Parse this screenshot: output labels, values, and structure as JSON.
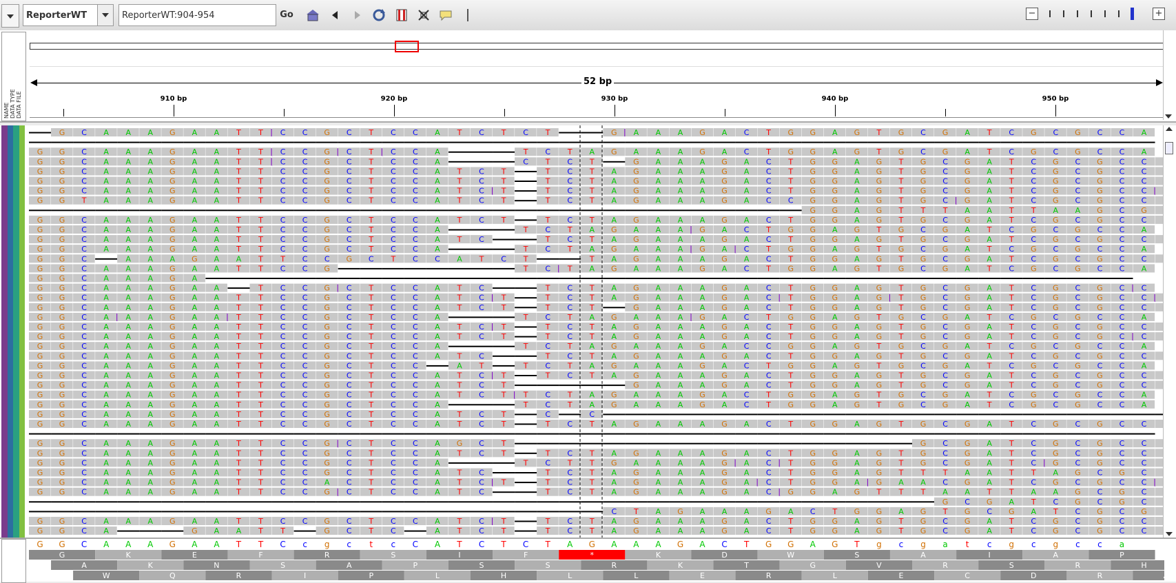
{
  "toolbar": {
    "genome": "ReporterWT",
    "locus": "ReporterWT:904-954",
    "go_label": "Go",
    "icons": [
      "home-icon",
      "back-icon",
      "forward-icon",
      "refresh-icon",
      "roi-icon",
      "resize-icon",
      "popup-info-icon"
    ]
  },
  "ruler": {
    "span_label": "52 bp",
    "ticks": [
      "910 bp",
      "920 bp",
      "930 bp",
      "940 bp",
      "950 bp"
    ],
    "header_labels": [
      "NAME",
      "DATA TYPE",
      "DATA FILE"
    ]
  },
  "colors": {
    "A": "#00c800",
    "C": "#0000ff",
    "G": "#d17105",
    "T": "#ff0000",
    "read_bg": "#c8c8c8",
    "insertion": "#8000c8",
    "stop_codon": "#ff0000"
  },
  "reference": {
    "start": 903,
    "sequence": "GGCAAAGAATTCcgctcCATCTCTAGAAAGACTGGAGTgcgatcgcgcca"
  },
  "reads": [
    {
      "text": "-GCAAAGAATTICCGCTCCATCTCT--GIAAAGACTGGAGTGCGATCGCGCCA"
    },
    {
      "text": "---------------------------------------------------"
    },
    {
      "text": "GGCAAAGAATTICCGICTICCA---TCTAGAAAGACTGGAGTGCGATCGCGCCA"
    },
    {
      "text": "GGCAAAGAATTICCGCTCCA---CTCT-GAAAGACTGGAGTGCGATCGCGCCA"
    },
    {
      "text": "GGCAAAGAATTCCGCTCCATCT-TCTAGAAAGACTGGAGTGCGATCGCGCCA"
    },
    {
      "text": "GGCAAAGAATTCCGCTCCATCT-TCTAGAAAGACTGGAGTGCGATCGCGCCA"
    },
    {
      "text": "GGCAAAGAATTCCGCTCCATCIT-TCTAGAAAGACTGGAGTGCGATCGCGCCIA"
    },
    {
      "text": "GGTAAAGAATTCCGCTCCATCT-TCTAGAAAGACCGGAGTGCIGATCGCGCCA"
    },
    {
      "text": "-----------------------------------GGAGTTTAATTAAGCGCA"
    },
    {
      "text": "GGCAAAGAATTCCGCTCCATCT-TCTAGAAAGACTGGAGTGCGATCGCGCCA"
    },
    {
      "text": "GGCAAAGAATTCCGCTCCA---TCTAGAAAIGACTGGAGTGCGATCGCGCCA"
    },
    {
      "text": "GGCAAAGAATTCCGCTCCATC--TCTAGAAAGACTGGAGTGCGATCGCGCCA"
    },
    {
      "text": "GGCAAAGAATTCCGCTCCA---TCTAGAAAIGAICTGGAGTGCGATCGCGCCA"
    },
    {
      "text": "GGC-AAAGAATTCCGCTCCATCT--TAGAAAGACTGGAGTGCGATCGCGCCA"
    },
    {
      "text": "GGCAAAGAATTCCG--------TCITAGAAAGACTGGAGTGCGATCGCGCCA"
    },
    {
      "text": "GGCAAAGA------------------------------------------"
    },
    {
      "text": "GGCAAAGAA-TCCGICTCCATC--TCTAGAAAGACTGGAGTGCGATCGCGCIC"
    },
    {
      "text": "GGCAAAGAATTCCGCTCCATCIT-TCTAGAAAGACITGGAGITGCGATCGCGCCIA"
    },
    {
      "text": "GGCAAAGAATTCCGCTCCATCT-TCT-GAAAGACTGGAGTGCGATCGCGCCA"
    },
    {
      "text": "GGCAIAAGAAITTCCGCTCCA---TCTAGAAAIGACTGGAGTGCGATCGCGCCA"
    },
    {
      "text": "GGCAAAGAATTCCGCTCCATCIT-TCTAGAAAGACTGGAGTGCGATCGCGCCA"
    },
    {
      "text": "GGCAAAGAATTCCGCTCCATCT-TCTAGAAAGACTGGAGTGCGATCGCGCICCA"
    },
    {
      "text": "GGCAAAGAATTCCGCTCCA---TCTAGAAAGACCGGAGTGCGATCGCGCCA"
    },
    {
      "text": "GGCAAAGAATTCCGCTCCATC--TCTAGAAAGACTGGAGTGCGATCGCGCCA"
    },
    {
      "text": "GGCAAAGAATTCCGCTCC-AT-TCTAGAAAGACTGGAGTGCGATCGCGCCA"
    },
    {
      "text": "GGCAAAGAATTCCGCTCCATCIT-TCTAGAAAGACTGGAGTGCGATCGCGCCA"
    },
    {
      "text": "GGCAAAGAATTCCGCTCCATCT-----GAAAGACTGGAGTGCGATCGCGCCA"
    },
    {
      "text": "GGCAAAGAATTCCGCTCCATCTITCTAGAAAGACTGGAGTGCGATCGCGCCA"
    },
    {
      "text": "GGCAAAGAATTCCGCTCCA---TCTAGAAAGACTGGAGTGCGATCGCGCCA"
    },
    {
      "text": "GGCAAAGAATTCCGCTCCATCT-C-C--------------------------"
    },
    {
      "text": "GGCAAAGAATTCCGCTCCATCT-TCTAGAAAGACTGGAGTGCGATCGCGCCA"
    },
    {
      "text": "---------------------------------------------------"
    },
    {
      "text": "GGCAAAGAATTCCGICTCCAGCT------------------GCGATCGCGCCA"
    },
    {
      "text": "GGCAAAGAATTCCGCTCCATCT-TCTAGAAAGACTGGAGTGCGATCGCGCCA"
    },
    {
      "text": "GGCAAAGAATTCCGCTCCA---TCTTGAAAAGIACITGGAGTGCGATCIGCGCCA"
    },
    {
      "text": "GGCAAAGAATTCCGCTCCATC--TCTAGAAAGACTGGAGTTTAATTAGCGCCA"
    },
    {
      "text": "GGCAAAGAATTCCACTCCATCIT-TCTAGAAAGAICTGGAIGAACGATCGCGCCIA"
    },
    {
      "text": "GGCAAAGAATTCCGICTCCATC--TCTAGAAAGACIGGAGTTTAATTAAGCGCA"
    },
    {
      "text": "-----------------------------------------GCGATCGCGCCA"
    },
    {
      "text": "--------------------------CTAGAAAGACTGGAGTGCGATCGCGCCA"
    },
    {
      "text": "GGCAAAGAATTCCGCTCCATCIT-TCTAGAAAGACTGGAGTGCGATCGCGCCA"
    },
    {
      "text": "GGCA---GAATT-GCTC-ATCT-TCTAGAAAGACTGGAGTGCGATCGCGCCA"
    }
  ],
  "translation": {
    "frame1": [
      "G",
      "K",
      "E",
      "F",
      "R",
      "S",
      "I",
      "F",
      "*",
      "K",
      "D",
      "W",
      "S",
      "A",
      "I",
      "A",
      "P"
    ],
    "frame2": [
      "A",
      "K",
      "N",
      "S",
      "A",
      "P",
      "S",
      "S",
      "R",
      "K",
      "T",
      "G",
      "V",
      "R",
      "S",
      "R",
      "H"
    ],
    "frame3": [
      "W",
      "Q",
      "R",
      "I",
      "P",
      "L",
      "H",
      "L",
      "L",
      "E",
      "R",
      "L",
      "E",
      "C",
      "D",
      "R",
      "A"
    ]
  }
}
